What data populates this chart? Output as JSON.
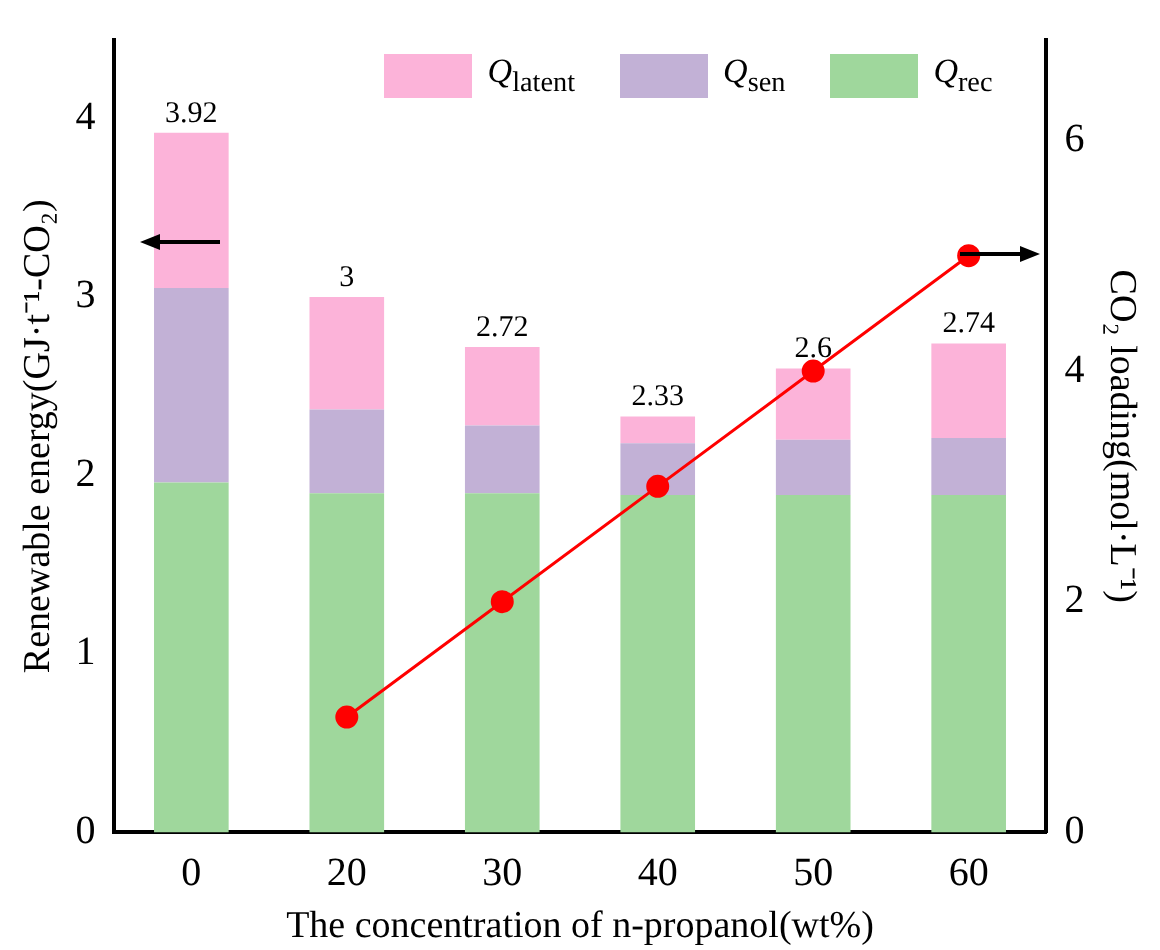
{
  "chart_data": {
    "type": "bar",
    "stacked": true,
    "xlabel": "The concentration of n-propanol(wt%)",
    "ylabel": "Renewable energy(GJ·t⁻¹-CO₂)",
    "y2label": "CO₂ loading(mol·L⁻¹)",
    "categories": [
      "0",
      "20",
      "30",
      "40",
      "50",
      "60"
    ],
    "series": [
      {
        "name": "Q$_{rec}$",
        "color": "#9fd79c",
        "values": [
          1.96,
          1.9,
          1.9,
          1.89,
          1.89,
          1.89
        ]
      },
      {
        "name": "Q$_{sen}$",
        "color": "#c2b1d6",
        "values": [
          1.09,
          0.47,
          0.38,
          0.29,
          0.31,
          0.32
        ]
      },
      {
        "name": "Q$_{latent}$",
        "color": "#fcb3d9",
        "values": [
          0.87,
          0.63,
          0.44,
          0.15,
          0.4,
          0.53
        ]
      },
      {
        "type": "line",
        "axis": "y2",
        "color": "#ff0000",
        "marker": "circle",
        "values": [
          null,
          1,
          2,
          3,
          4,
          5
        ]
      }
    ],
    "totals": [
      "3.92",
      "3",
      "2.72",
      "2.33",
      "2.6",
      "2.74"
    ],
    "ylim": [
      0,
      4.44
    ],
    "yticks": [
      0,
      1,
      2,
      3,
      4
    ],
    "y2lim": [
      0,
      6.87
    ],
    "y2ticks": [
      0,
      2,
      4,
      6
    ],
    "grid": false,
    "legend": "top"
  }
}
